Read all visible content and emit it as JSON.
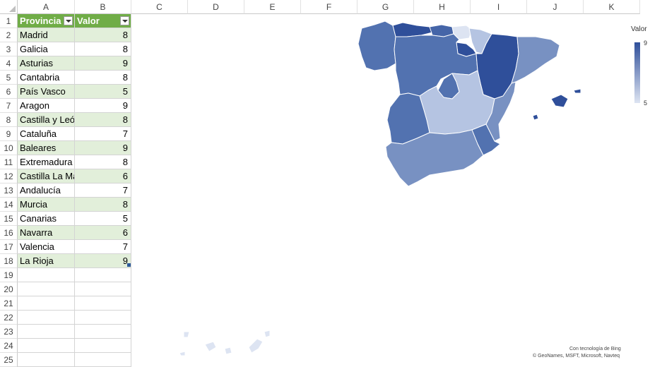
{
  "columns": [
    "A",
    "B",
    "C",
    "D",
    "E",
    "F",
    "G",
    "H",
    "I",
    "J",
    "K"
  ],
  "row_numbers": [
    1,
    2,
    3,
    4,
    5,
    6,
    7,
    8,
    9,
    10,
    11,
    12,
    13,
    14,
    15,
    16,
    17,
    18,
    19,
    20,
    21,
    22,
    23,
    24,
    25
  ],
  "table": {
    "headers": [
      "Provincia",
      "Valor"
    ],
    "rows": [
      [
        "Madrid",
        "8"
      ],
      [
        "Galicia",
        "8"
      ],
      [
        "Asturias",
        "9"
      ],
      [
        "Cantabria",
        "8"
      ],
      [
        "País Vasco",
        "5"
      ],
      [
        "Aragon",
        "9"
      ],
      [
        "Castilla y León",
        "8"
      ],
      [
        "Cataluña",
        "7"
      ],
      [
        "Baleares",
        "9"
      ],
      [
        "Extremadura",
        "8"
      ],
      [
        "Castilla La Mancha",
        "6"
      ],
      [
        "Andalucía",
        "7"
      ],
      [
        "Murcia",
        "8"
      ],
      [
        "Canarias",
        "5"
      ],
      [
        "Navarra",
        "6"
      ],
      [
        "Valencia",
        "7"
      ],
      [
        "La Rioja",
        "9"
      ]
    ]
  },
  "map": {
    "legend_title": "Valor",
    "legend_max": "9",
    "legend_min": "5",
    "color_max": "#2f4f9a",
    "color_min": "#dde4f2",
    "attribution_line1": "Con tecnología de Bing",
    "attribution_line2": "© GeoNames, MSFT, Microsoft, Navteq"
  },
  "accent_colors": {
    "header_green": "#70ad47",
    "band_green": "#e2efda"
  }
}
